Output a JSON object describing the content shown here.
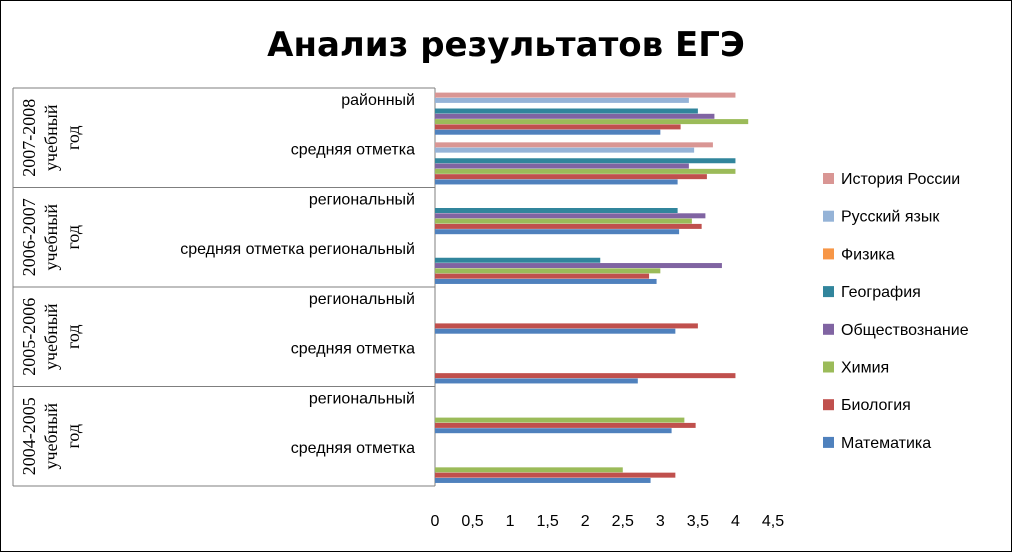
{
  "chart_data": {
    "type": "bar",
    "orientation": "horizontal",
    "title": "Анализ результатов ЕГЭ",
    "xlim": [
      0,
      4.5
    ],
    "ticks": [
      "0",
      "0,5",
      "1",
      "1,5",
      "2",
      "2,5",
      "3",
      "3,5",
      "4",
      "4,5"
    ],
    "legend_position": "right",
    "groups": [
      {
        "label": "2007-2008 учебный год",
        "line1": "2007-2008",
        "line2": "учебный",
        "line3": "год"
      },
      {
        "label": "2006-2007 учебный год",
        "line1": "2006-2007",
        "line2": "учебный",
        "line3": "год"
      },
      {
        "label": "2005-2006 учебный год",
        "line1": "2005-2006",
        "line2": "учебный",
        "line3": "год"
      },
      {
        "label": "2004-2005 учебный год",
        "line1": "2004-2005",
        "line2": "учебный",
        "line3": "год"
      }
    ],
    "categories": [
      {
        "label": "районный",
        "group": 0
      },
      {
        "label": "средняя отметка",
        "group": 0
      },
      {
        "label": "региональный",
        "group": 1
      },
      {
        "label": "средняя отметка региональный",
        "group": 1
      },
      {
        "label": "региональный",
        "group": 2
      },
      {
        "label": "средняя отметка",
        "group": 2
      },
      {
        "label": "региональный",
        "group": 3
      },
      {
        "label": "средняя отметка",
        "group": 3
      }
    ],
    "series": [
      {
        "name": "История России",
        "color": "#D99694",
        "values": [
          4.0,
          3.7,
          null,
          null,
          null,
          null,
          null,
          null
        ]
      },
      {
        "name": "Русский язык",
        "color": "#95B3D7",
        "values": [
          3.38,
          3.45,
          null,
          null,
          null,
          null,
          null,
          null
        ]
      },
      {
        "name": "Физика",
        "color": "#F79646",
        "values": [
          null,
          null,
          null,
          null,
          null,
          null,
          null,
          null
        ]
      },
      {
        "name": "География",
        "color": "#31859C",
        "values": [
          3.5,
          4.0,
          3.23,
          2.2,
          null,
          null,
          null,
          null
        ]
      },
      {
        "name": "Обществознание",
        "color": "#8064A2",
        "values": [
          3.72,
          3.38,
          3.6,
          3.82,
          null,
          null,
          null,
          null
        ]
      },
      {
        "name": "Химия",
        "color": "#9BBB59",
        "values": [
          4.17,
          4.0,
          3.42,
          3.0,
          null,
          null,
          3.32,
          2.5
        ]
      },
      {
        "name": "Биология",
        "color": "#C0504D",
        "values": [
          3.27,
          3.62,
          3.55,
          2.85,
          3.5,
          4.0,
          3.47,
          3.2
        ]
      },
      {
        "name": "Математика",
        "color": "#4F81BD",
        "values": [
          3.0,
          3.23,
          3.25,
          2.95,
          3.2,
          2.7,
          3.15,
          2.87
        ]
      }
    ]
  }
}
